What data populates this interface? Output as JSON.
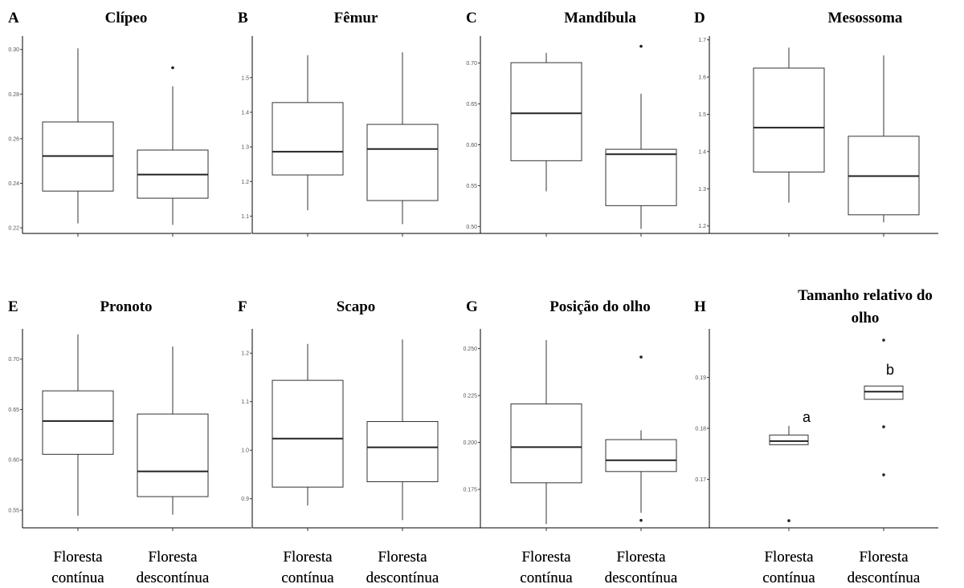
{
  "chart_data": [
    {
      "panel": "A",
      "title": "Clípeo",
      "type": "box",
      "categories": [
        "Floresta contínua",
        "Floresta descontínua"
      ],
      "ylim": [
        0.2175,
        0.306
      ],
      "yticks": [
        0.22,
        0.24,
        0.26,
        0.28,
        0.3
      ],
      "ytick_labels": [
        "0.22",
        "0.24",
        "0.26",
        "0.28",
        "0.30"
      ],
      "boxes": [
        {
          "whisker_low": 0.222,
          "q1": 0.2365,
          "median": 0.2522,
          "q3": 0.2675,
          "whisker_high": 0.3005,
          "outliers": []
        },
        {
          "whisker_low": 0.2213,
          "q1": 0.2333,
          "median": 0.2439,
          "q3": 0.2549,
          "whisker_high": 0.2835,
          "outliers": [
            0.2918
          ]
        }
      ],
      "annotations": []
    },
    {
      "panel": "B",
      "title": "Fêmur",
      "type": "box",
      "categories": [
        "Floresta contínua",
        "Floresta descontínua"
      ],
      "ylim": [
        1.05,
        1.62
      ],
      "yticks": [
        1.1,
        1.2,
        1.3,
        1.4,
        1.5
      ],
      "ytick_labels": [
        "1.1",
        "1.2",
        "1.3",
        "1.4",
        "1.5"
      ],
      "boxes": [
        {
          "whisker_low": 1.117,
          "q1": 1.219,
          "median": 1.286,
          "q3": 1.428,
          "whisker_high": 1.565,
          "outliers": []
        },
        {
          "whisker_low": 1.077,
          "q1": 1.145,
          "median": 1.294,
          "q3": 1.365,
          "whisker_high": 1.573,
          "outliers": []
        }
      ],
      "annotations": []
    },
    {
      "panel": "C",
      "title": "Mandíbula",
      "type": "box",
      "categories": [
        "Floresta contínua",
        "Floresta descontínua"
      ],
      "ylim": [
        0.4915,
        0.733
      ],
      "yticks": [
        0.5,
        0.55,
        0.6,
        0.65,
        0.7
      ],
      "ytick_labels": [
        "0.50",
        "0.55",
        "0.60",
        "0.65",
        "0.70"
      ],
      "boxes": [
        {
          "whisker_low": 0.543,
          "q1": 0.5805,
          "median": 0.6385,
          "q3": 0.7005,
          "whisker_high": 0.7125,
          "outliers": []
        },
        {
          "whisker_low": 0.497,
          "q1": 0.5255,
          "median": 0.5885,
          "q3": 0.5945,
          "whisker_high": 0.6625,
          "outliers": [
            0.7205
          ]
        }
      ],
      "annotations": []
    },
    {
      "panel": "D",
      "title": "Mesossoma",
      "type": "box",
      "categories": [
        "Floresta contínua",
        "Floresta descontínua"
      ],
      "ylim": [
        1.18,
        1.71
      ],
      "yticks": [
        1.2,
        1.3,
        1.4,
        1.5,
        1.6,
        1.7
      ],
      "ytick_labels": [
        "1.2",
        "1.3",
        "1.4",
        "1.5",
        "1.6",
        "1.7"
      ],
      "boxes": [
        {
          "whisker_low": 1.263,
          "q1": 1.345,
          "median": 1.464,
          "q3": 1.624,
          "whisker_high": 1.679,
          "outliers": []
        },
        {
          "whisker_low": 1.21,
          "q1": 1.23,
          "median": 1.334,
          "q3": 1.441,
          "whisker_high": 1.658,
          "outliers": []
        }
      ],
      "annotations": []
    },
    {
      "panel": "E",
      "title": "Pronoto",
      "type": "box",
      "categories": [
        "Floresta contínua",
        "Floresta descontínua"
      ],
      "ylim": [
        0.5325,
        0.73
      ],
      "yticks": [
        0.55,
        0.6,
        0.65,
        0.7
      ],
      "ytick_labels": [
        "0.55",
        "0.60",
        "0.65",
        "0.70"
      ],
      "boxes": [
        {
          "whisker_low": 0.5445,
          "q1": 0.6055,
          "median": 0.6385,
          "q3": 0.6685,
          "whisker_high": 0.7245,
          "outliers": []
        },
        {
          "whisker_low": 0.5455,
          "q1": 0.5635,
          "median": 0.5885,
          "q3": 0.6455,
          "whisker_high": 0.7125,
          "outliers": []
        }
      ],
      "annotations": []
    },
    {
      "panel": "F",
      "title": "Scapo",
      "type": "box",
      "categories": [
        "Floresta contínua",
        "Floresta descontínua"
      ],
      "ylim": [
        0.84,
        1.25
      ],
      "yticks": [
        0.9,
        1.0,
        1.1,
        1.2
      ],
      "ytick_labels": [
        "0.9",
        "1.0",
        "1.1",
        "1.2"
      ],
      "boxes": [
        {
          "whisker_low": 0.886,
          "q1": 0.924,
          "median": 1.024,
          "q3": 1.144,
          "whisker_high": 1.219,
          "outliers": []
        },
        {
          "whisker_low": 0.856,
          "q1": 0.935,
          "median": 1.006,
          "q3": 1.059,
          "whisker_high": 1.228,
          "outliers": []
        }
      ],
      "annotations": []
    },
    {
      "panel": "G",
      "title": "Posição do olho",
      "type": "box",
      "categories": [
        "Floresta contínua",
        "Floresta descontínua"
      ],
      "ylim": [
        0.1545,
        0.2605
      ],
      "yticks": [
        0.175,
        0.2,
        0.225,
        0.25
      ],
      "ytick_labels": [
        "0.175",
        "0.200",
        "0.225",
        "0.250"
      ],
      "boxes": [
        {
          "whisker_low": 0.1565,
          "q1": 0.1785,
          "median": 0.1975,
          "q3": 0.2205,
          "whisker_high": 0.2545,
          "outliers": []
        },
        {
          "whisker_low": 0.1625,
          "q1": 0.1845,
          "median": 0.1905,
          "q3": 0.2015,
          "whisker_high": 0.2065,
          "outliers": [
            0.1585,
            0.2455
          ]
        }
      ],
      "annotations": []
    },
    {
      "panel": "H",
      "title": "Tamanho relativo do olho",
      "type": "box",
      "categories": [
        "Floresta contínua",
        "Floresta descontínua"
      ],
      "ylim": [
        0.1605,
        0.1995
      ],
      "yticks": [
        0.17,
        0.18,
        0.19
      ],
      "ytick_labels": [
        "0.17",
        "0.18",
        "0.19"
      ],
      "boxes": [
        {
          "whisker_low": 0.1768,
          "q1": 0.1768,
          "median": 0.1775,
          "q3": 0.1787,
          "whisker_high": 0.1805,
          "outliers": [
            0.1619
          ]
        },
        {
          "whisker_low": 0.1857,
          "q1": 0.1857,
          "median": 0.1872,
          "q3": 0.1883,
          "whisker_high": 0.1883,
          "outliers": [
            0.1973,
            0.1803,
            0.1709
          ]
        }
      ],
      "annotations": [
        "a",
        "b"
      ]
    }
  ]
}
